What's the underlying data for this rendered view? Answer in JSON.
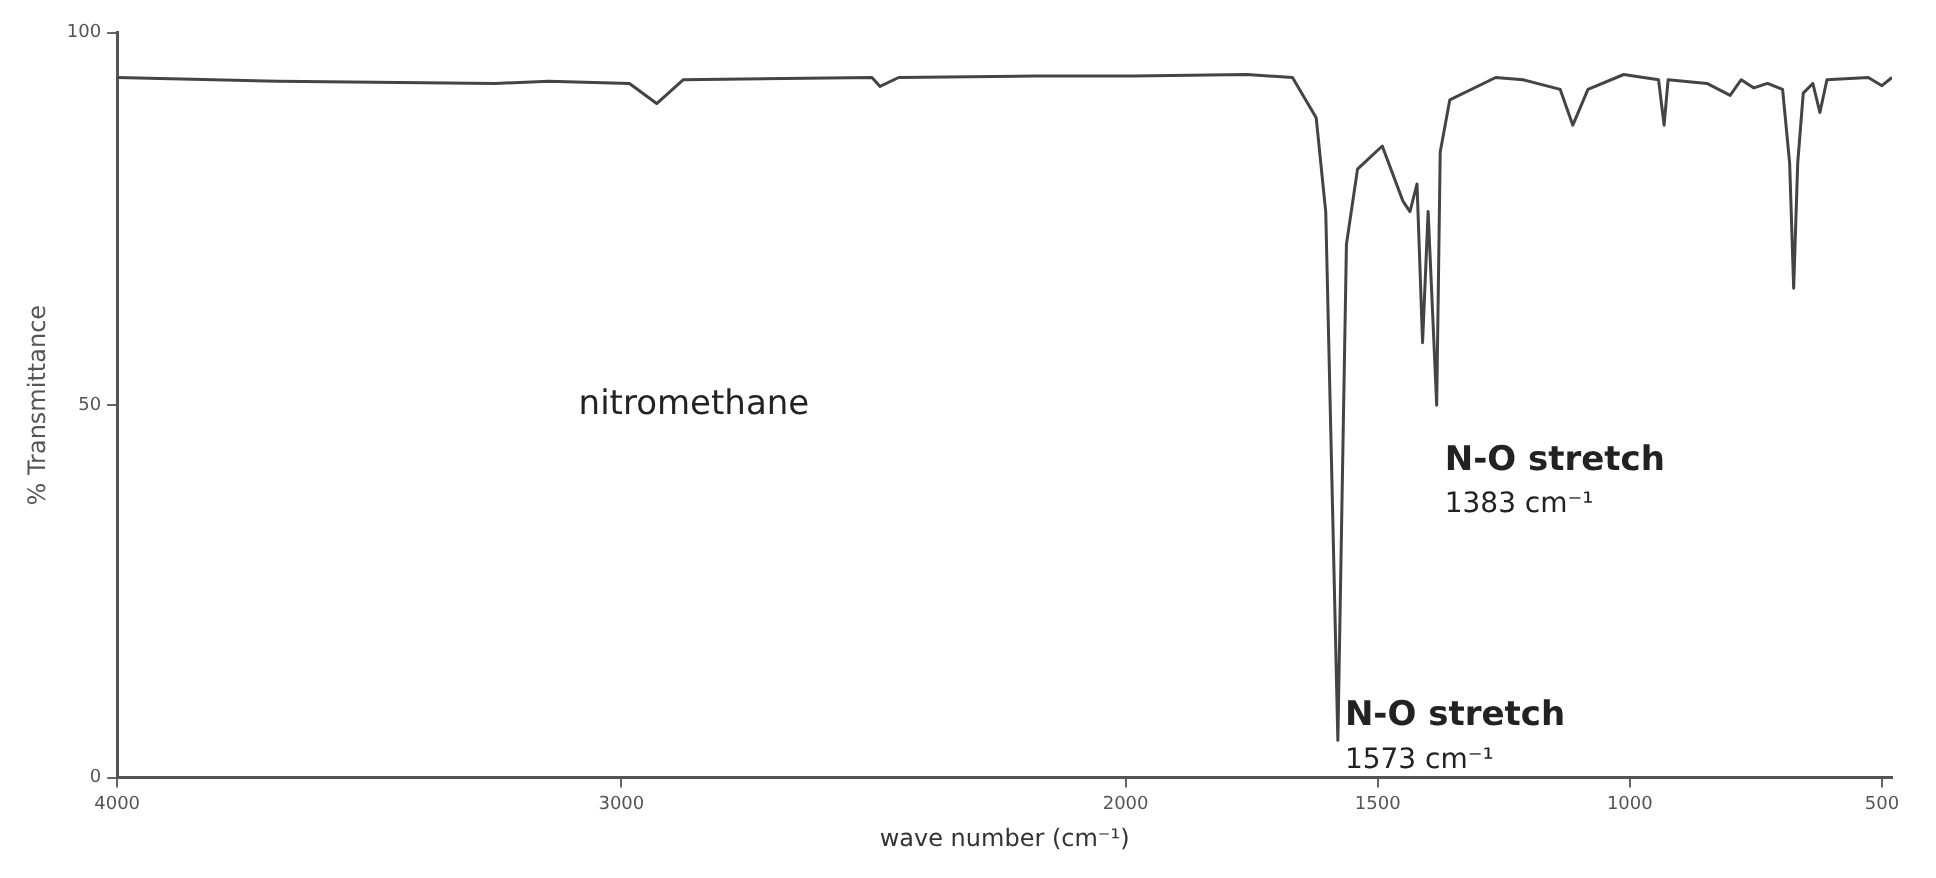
{
  "chart_data": {
    "type": "line",
    "xlabel": "wave number (cm⁻¹)",
    "ylabel": "% Transmittance",
    "annotations": [
      "nitromethane",
      {
        "text": "N-O stretch\n1383 cm⁻¹",
        "x": 1383,
        "y": 50
      },
      {
        "text": "N-O stretch\n1573 cm⁻¹",
        "x": 1573,
        "y": 5
      }
    ],
    "xlim": [
      4000,
      480
    ],
    "xticks": [
      4000,
      3000,
      2000,
      1500,
      1000,
      500
    ],
    "ylim": [
      0,
      100
    ],
    "yticks": [
      0,
      50,
      100
    ],
    "marker": "none",
    "line_style": "solid",
    "series": [
      {
        "color": "#444444",
        "x": [
          4000,
          3680,
          3250,
          3144,
          2984,
          2930,
          2877,
          2503,
          2487,
          2450,
          2180,
          1985,
          1759,
          1669,
          1622,
          1603,
          1579,
          1562,
          1540,
          1491,
          1450,
          1436,
          1422,
          1411,
          1400,
          1383,
          1376,
          1357,
          1266,
          1212,
          1138,
          1113,
          1083,
          1012,
          943,
          932,
          924,
          847,
          801,
          779,
          754,
          727,
          697,
          683,
          675,
          667,
          656,
          637,
          623,
          609,
          527,
          500,
          480
        ],
        "values": [
          94,
          93.5,
          93.2,
          93.5,
          93.2,
          90.5,
          93.7,
          94,
          92.8,
          94,
          94.2,
          94.2,
          94.4,
          94,
          88.6,
          75.9,
          5,
          71.6,
          81.7,
          84.8,
          77.4,
          76,
          79.7,
          58.4,
          76,
          50,
          84,
          91,
          94,
          93.7,
          92.4,
          87.6,
          92.4,
          94.4,
          93.7,
          87.6,
          93.7,
          93.2,
          91.6,
          93.7,
          92.6,
          93.2,
          92.4,
          82.5,
          65.7,
          82.5,
          91.9,
          93.2,
          89.3,
          93.7,
          94,
          92.9,
          94
        ]
      }
    ]
  }
}
